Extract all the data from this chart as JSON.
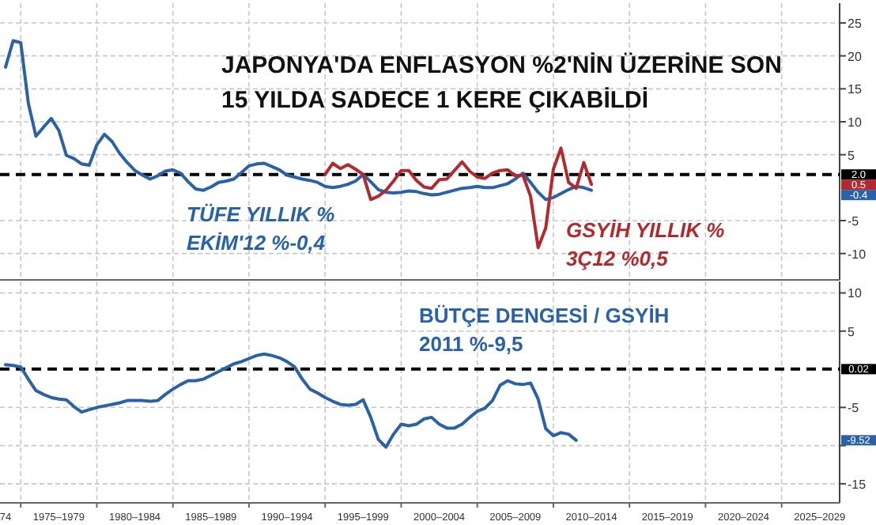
{
  "chart_data": [
    {
      "type": "line",
      "title": "JAPONYA'DA ENFLASYON %2'NİN ÜZERİNE SON 15 YILDA SADECE 1 KERE ÇIKABİLDİ",
      "categories": [
        null,
        null,
        null,
        null,
        null,
        null,
        null,
        null,
        null,
        null,
        null,
        null,
        null,
        null,
        null,
        null,
        null,
        null,
        null,
        null,
        null,
        null,
        null,
        null,
        null,
        null,
        null,
        null,
        null,
        null,
        null,
        null,
        null,
        null,
        null,
        null,
        null,
        null,
        null,
        null,
        null,
        null,
        null,
        null,
        null,
        null,
        null,
        null,
        null,
        null,
        null,
        null,
        null,
        null,
        null,
        null,
        null,
        null,
        null,
        null,
        null,
        null,
        null,
        null,
        null,
        null,
        null,
        null,
        null,
        null,
        null,
        null,
        null,
        null,
        null,
        null,
        null,
        null,
        null,
        null,
        null,
        null,
        null,
        null,
        null,
        null,
        null,
        null,
        null,
        null,
        null,
        null,
        null,
        null,
        null,
        null,
        null,
        null,
        null,
        null,
        null,
        null,
        null,
        null,
        null,
        null,
        null,
        null,
        null,
        null
      ],
      "ylim": [
        -14,
        28
      ],
      "yticks": [
        -10,
        -5,
        5,
        10,
        15,
        20,
        25
      ],
      "tick_labels": "y",
      "grid": true,
      "line_style": "solid",
      "series": [
        {
          "name": "TÜFE YILLIK %",
          "color": "#2a62a8",
          "values": [
            18.3,
            22.3,
            22,
            12.8,
            7.8,
            9.2,
            10.5,
            8.7,
            4.9,
            4.4,
            3.6,
            3.4,
            6.5,
            8.1,
            7,
            5.2,
            3.8,
            2.6,
            1.9,
            1.3,
            1.8,
            2.5,
            2.7,
            2.2,
            0.9,
            -0.2,
            -0.4,
            0.1,
            0.8,
            1,
            1.3,
            2.3,
            3.3,
            3.6,
            3.7,
            3.2,
            2.7,
            1.9,
            1.6,
            1.3,
            1.1,
            0.8,
            0.2,
            0,
            0.2,
            0.5,
            1,
            2,
            0.9,
            -0.3,
            -0.7,
            -0.8,
            -0.7,
            -0.5,
            -0.6,
            -0.9,
            -1.1,
            -1,
            -0.7,
            -0.4,
            -0.1,
            0,
            0.2,
            0,
            0,
            0.3,
            0.6,
            1.3,
            2.2,
            0.8,
            -0.7,
            -1.8,
            -1.5,
            -0.9,
            -0.3,
            0.2,
            0,
            -0.4,
            null,
            null,
            null,
            null,
            null,
            null,
            null,
            null,
            null,
            null,
            null,
            null,
            null,
            null,
            null,
            null,
            null,
            null,
            null,
            null,
            null,
            null,
            null,
            null,
            null,
            null,
            null,
            null,
            null,
            null,
            null,
            null
          ]
        },
        {
          "name": "GSYİH YILLIK %",
          "color": "#b32a2e",
          "values": [
            null,
            null,
            null,
            null,
            null,
            null,
            null,
            null,
            null,
            null,
            null,
            null,
            null,
            null,
            null,
            null,
            null,
            null,
            null,
            null,
            null,
            null,
            null,
            null,
            null,
            null,
            null,
            null,
            null,
            null,
            null,
            null,
            null,
            null,
            null,
            null,
            null,
            null,
            null,
            null,
            null,
            null,
            2,
            3.7,
            2.9,
            3.5,
            2.8,
            2,
            -1.8,
            -1.3,
            -0.4,
            1,
            2.6,
            2.6,
            1.1,
            0.1,
            -0.1,
            1.2,
            1.3,
            2.6,
            3.9,
            2.5,
            1.6,
            1.4,
            2.2,
            2.6,
            2.7,
            1.8,
            1.9,
            -1.3,
            -9.1,
            -6.1,
            2.8,
            6,
            0.8,
            -0.1,
            3.8,
            0.5,
            null,
            null,
            null,
            null,
            null,
            null,
            null,
            null,
            null,
            null,
            null,
            null,
            null,
            null,
            null,
            null,
            null,
            null,
            null,
            null,
            null,
            null,
            null,
            null,
            null,
            null,
            null,
            null,
            null,
            null,
            null,
            null
          ]
        }
      ],
      "ref_lines": [
        {
          "axis": "y",
          "value": 2,
          "label": "2.0",
          "color": "#000000",
          "line_style": "dashed"
        }
      ],
      "annotations": [
        "EKİM'12 %-0,4",
        "3Ç12 %0,5",
        "0.5",
        "-0.4"
      ]
    },
    {
      "type": "line",
      "categories": [
        "74",
        null,
        null,
        null,
        null,
        null,
        null,
        "1975–1979",
        null,
        null,
        null,
        null,
        null,
        null,
        null,
        null,
        null,
        "1980–1984",
        null,
        null,
        null,
        null,
        null,
        null,
        null,
        null,
        null,
        "1985–1989",
        null,
        null,
        null,
        null,
        null,
        null,
        null,
        null,
        null,
        "1990–1994",
        null,
        null,
        null,
        null,
        null,
        null,
        null,
        null,
        null,
        "1995–1999",
        null,
        null,
        null,
        null,
        null,
        null,
        null,
        null,
        null,
        "2000–2004",
        null,
        null,
        null,
        null,
        null,
        null,
        null,
        null,
        null,
        "2005–2009",
        null,
        null,
        null,
        null,
        null,
        null,
        null,
        null,
        null,
        "2010–2014",
        null,
        null,
        null,
        null,
        null,
        null,
        null,
        null,
        null,
        "2015–2019",
        null,
        null,
        null,
        null,
        null,
        null,
        null,
        null,
        null,
        "2020–2024",
        null,
        null,
        null,
        null,
        null,
        null,
        null,
        null,
        null,
        "2025–2029",
        null,
        null
      ],
      "ylim": [
        -17.5,
        11.5
      ],
      "yticks": [
        -15,
        {
          "value": -10,
          "label": null
        },
        -5,
        5,
        10
      ],
      "grid": true,
      "line_style": "solid",
      "series": [
        {
          "name": "BÜTÇE DENGESİ / GSYİH",
          "color": "#2a62a8",
          "values": [
            0.6,
            0.5,
            0.3,
            -1.3,
            -2.8,
            -3.3,
            -3.7,
            -3.9,
            -4,
            -4.9,
            -5.6,
            -5.3,
            -5,
            -4.8,
            -4.6,
            -4.4,
            -4.1,
            -4.1,
            -4.1,
            -4.2,
            -4.1,
            -3.3,
            -2.6,
            -2,
            -1.5,
            -1.5,
            -1.3,
            -0.8,
            -0.3,
            0.2,
            0.7,
            1,
            1.4,
            1.8,
            2,
            1.8,
            1.5,
            1,
            0.3,
            -1.3,
            -2.6,
            -3.1,
            -3.7,
            -4.2,
            -4.6,
            -4.7,
            -4.6,
            -4,
            -6.3,
            -9.2,
            -10.2,
            -8.5,
            -7.2,
            -7.4,
            -7.2,
            -6.5,
            -6.3,
            -7.2,
            -7.7,
            -7.7,
            -7.2,
            -6.3,
            -5.5,
            -5.1,
            -4.1,
            -2.1,
            -1.5,
            -1.9,
            -2,
            -1.8,
            -3.9,
            -7.8,
            -8.7,
            -8.3,
            -8.5,
            -9.3,
            null,
            null,
            null,
            null,
            null,
            null,
            null,
            null,
            null,
            null,
            null,
            null,
            null,
            null,
            null,
            null,
            null,
            null,
            null,
            null,
            null,
            null,
            null,
            null,
            null,
            null,
            null,
            null,
            null,
            null,
            null,
            null,
            null,
            null
          ]
        }
      ],
      "ref_lines": [
        {
          "axis": "y",
          "value": 0.02,
          "label": "0.02",
          "color": "#000000",
          "line_style": "dashed"
        }
      ],
      "annotations": [
        "2011 %-9,5",
        "-9.52"
      ]
    }
  ]
}
